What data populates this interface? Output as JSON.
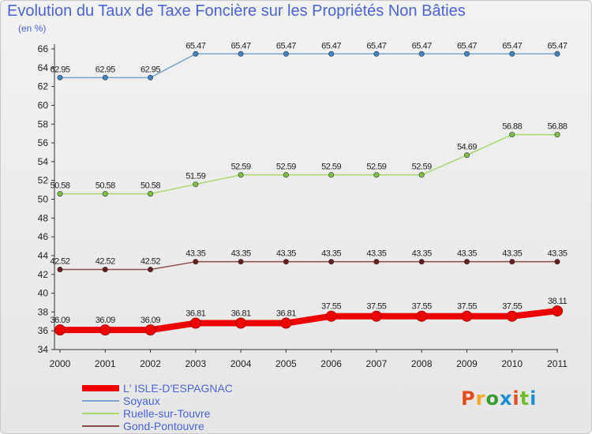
{
  "title": "Evolution du Taux de Taxe Foncière sur les Propriétés Non Bâties",
  "unit": "(en %)",
  "logo": {
    "text": "Proxiti",
    "colors": [
      "#e8491d",
      "#f5a623",
      "#3a9b2e",
      "#1d8ed6",
      "#e8491d",
      "#6bbf2a",
      "#1d8ed6"
    ]
  },
  "chart_data": {
    "type": "line",
    "categories": [
      "2000",
      "2001",
      "2002",
      "2003",
      "2004",
      "2005",
      "2006",
      "2007",
      "2008",
      "2009",
      "2010",
      "2011"
    ],
    "ylim": [
      34,
      66
    ],
    "yticks": [
      34,
      36,
      38,
      40,
      42,
      44,
      46,
      48,
      50,
      52,
      54,
      56,
      58,
      60,
      62,
      64,
      66
    ],
    "grid": false,
    "legend_position": "bottom-left",
    "series": [
      {
        "name": "L' ISLE-D'ESPAGNAC",
        "color": "#ee0000",
        "width": 8,
        "values": [
          36.09,
          36.09,
          36.09,
          36.81,
          36.81,
          36.81,
          37.55,
          37.55,
          37.55,
          37.55,
          37.55,
          38.11
        ],
        "labels": [
          "36.09",
          "36.09",
          "36.09",
          "36.81",
          "36.81",
          "36.81",
          "37.55",
          "37.55",
          "37.55",
          "37.55",
          "37.55",
          "38.11"
        ]
      },
      {
        "name": "Soyaux",
        "color": "#7aa6cf",
        "marker": "#3d85c6",
        "width": 1.5,
        "values": [
          62.95,
          62.95,
          62.95,
          65.47,
          65.47,
          65.47,
          65.47,
          65.47,
          65.47,
          65.47,
          65.47,
          65.47
        ],
        "labels": [
          "62.95",
          "62.95",
          "62.95",
          "65.47",
          "65.47",
          "65.47",
          "65.47",
          "65.47",
          "65.47",
          "65.47",
          "65.47",
          "65.47"
        ]
      },
      {
        "name": "Ruelle-sur-Touvre",
        "color": "#a6d96a",
        "marker": "#7cc242",
        "width": 1.5,
        "values": [
          50.58,
          50.58,
          50.58,
          51.59,
          52.59,
          52.59,
          52.59,
          52.59,
          52.59,
          54.69,
          56.88,
          56.88
        ],
        "labels": [
          "50.58",
          "50.58",
          "50.58",
          "51.59",
          "52.59",
          "52.59",
          "52.59",
          "52.59",
          "52.59",
          "54.69",
          "56.88",
          "56.88"
        ]
      },
      {
        "name": "Gond-Pontouvre",
        "color": "#8c4a4a",
        "marker": "#6b1c1c",
        "width": 1.5,
        "values": [
          42.52,
          42.52,
          42.52,
          43.35,
          43.35,
          43.35,
          43.35,
          43.35,
          43.35,
          43.35,
          43.35,
          43.35
        ],
        "labels": [
          "42.52",
          "42.52",
          "42.52",
          "43.35",
          "43.35",
          "43.35",
          "43.35",
          "43.35",
          "43.35",
          "43.35",
          "43.35",
          "43.35"
        ]
      }
    ]
  }
}
